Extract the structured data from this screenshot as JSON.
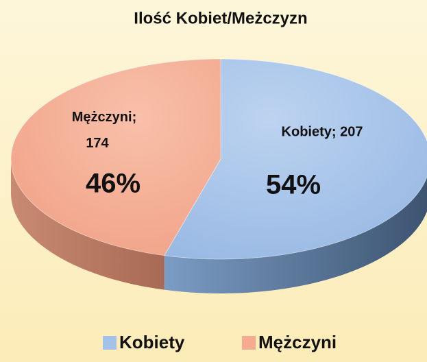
{
  "chart_data": {
    "type": "pie3d",
    "title": "Ilość Kobiet/Meżczyzn",
    "categories": [
      "Kobiety",
      "Mężczyni"
    ],
    "values": [
      207,
      174
    ],
    "value_labels": [
      "Kobiety; 207",
      "Mężczyni; 174"
    ],
    "percents": [
      54,
      46
    ],
    "percent_labels": [
      "54%",
      "46%"
    ],
    "colors": [
      "#a4c2e8",
      "#f4ab90"
    ],
    "legend": "bottom"
  }
}
